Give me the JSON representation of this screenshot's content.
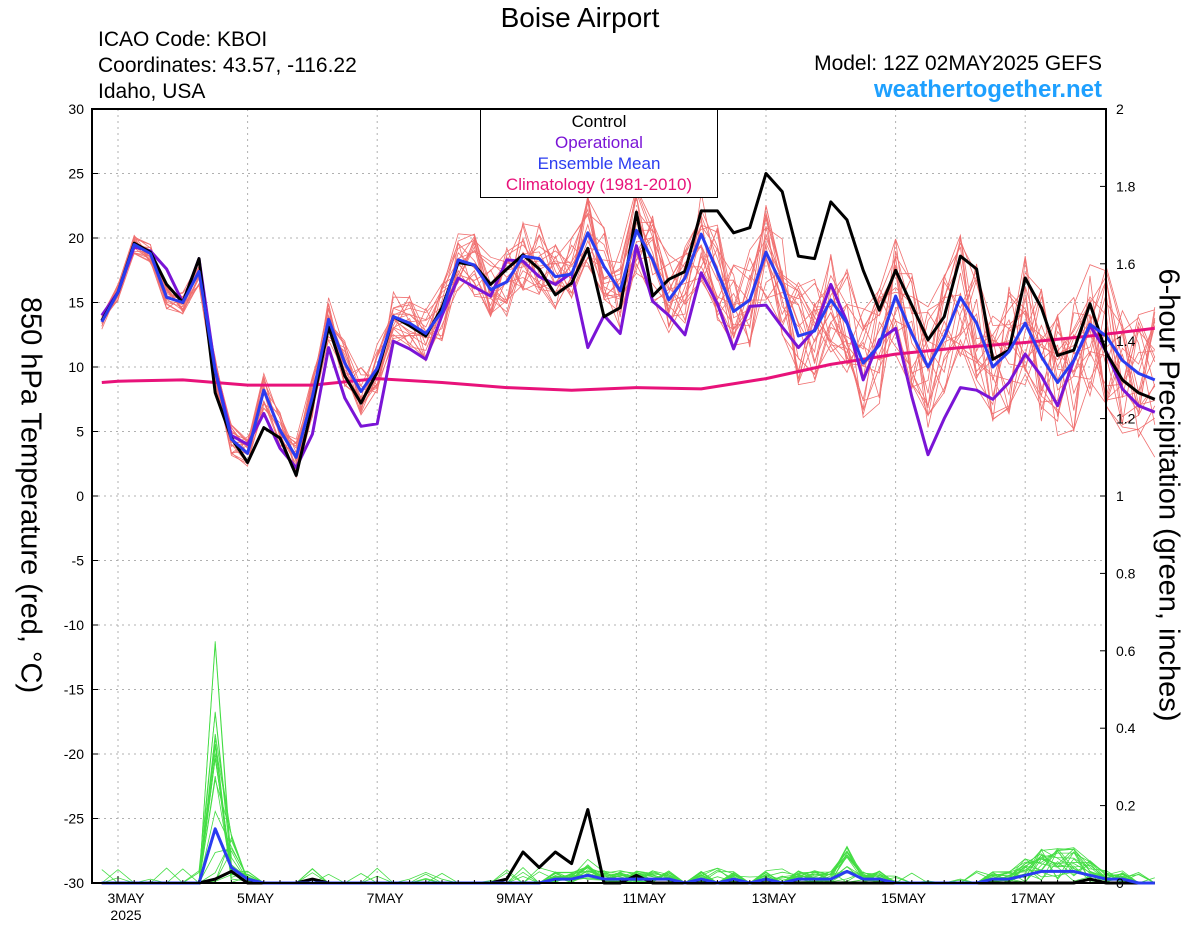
{
  "header": {
    "title": "Boise Airport",
    "icao": "ICAO Code: KBOI",
    "coordinates": "Coordinates: 43.57, -116.22",
    "region": "Idaho, USA",
    "model": "Model: 12Z 02MAY2025 GEFS",
    "site": "weathertogether.net"
  },
  "colors": {
    "members_temp": "#f07070",
    "members_precip": "#44dd44",
    "control": "#000000",
    "operational": "#7a14d6",
    "ensemble_mean": "#2a3cf0",
    "climatology": "#e8127a"
  },
  "chart_data": {
    "type": "line",
    "ylabel_left": "850 hPa Temperature (red, °C)",
    "ylabel_right": "6-hour Precipitation (green, inches)",
    "ylim_left": [
      -30,
      30
    ],
    "ylim_right": [
      0,
      2
    ],
    "xlim": [
      0,
      64
    ],
    "x_unit": "6-hour steps from 00Z 03MAY2025",
    "yticks_left": [
      30,
      25,
      20,
      15,
      10,
      5,
      0,
      -5,
      -10,
      -15,
      -20,
      -25,
      -30
    ],
    "yticks_right": [
      "2",
      "1.8",
      "1.6",
      "1.4",
      "1.2",
      "1",
      "0.8",
      "0.6",
      "0.4",
      "0.2",
      "0"
    ],
    "xticks": [
      {
        "x": 0,
        "label": "3MAY",
        "sub": "2025"
      },
      {
        "x": 8,
        "label": "5MAY"
      },
      {
        "x": 16,
        "label": "7MAY"
      },
      {
        "x": 24,
        "label": "9MAY"
      },
      {
        "x": 32,
        "label": "11MAY"
      },
      {
        "x": 40,
        "label": "13MAY"
      },
      {
        "x": 48,
        "label": "15MAY"
      },
      {
        "x": 56,
        "label": "17MAY"
      }
    ],
    "grid": true,
    "legend": {
      "position": "top-center",
      "entries": [
        "Control",
        "Operational",
        "Ensemble Mean",
        "Climatology (1981-2010)"
      ]
    },
    "series": [
      {
        "name": "Control",
        "axis": "left",
        "x": [
          -1,
          0,
          1,
          2,
          3,
          4,
          5,
          6,
          7,
          8,
          9,
          10,
          11,
          12,
          13,
          14,
          15,
          16,
          17,
          18,
          19,
          20,
          21,
          22,
          23,
          24,
          25,
          26,
          27,
          28,
          29,
          30,
          31,
          32,
          33,
          34,
          35,
          36,
          37,
          38,
          39,
          40,
          41,
          42,
          43,
          44,
          45,
          46,
          47,
          48,
          49,
          50,
          51,
          52,
          53,
          54,
          55,
          56,
          57,
          58,
          59,
          60,
          61,
          62,
          63,
          64
        ],
        "values": [
          13.6,
          15.8,
          19.6,
          18.9,
          16.4,
          15.0,
          18.4,
          8.0,
          4.5,
          2.6,
          5.3,
          4.5,
          1.6,
          7.0,
          13.1,
          9.3,
          7.2,
          9.6,
          13.9,
          13.2,
          12.4,
          14.6,
          18.1,
          17.9,
          16.4,
          17.6,
          18.7,
          17.6,
          15.6,
          16.5,
          19.2,
          13.9,
          14.6,
          22.0,
          15.5,
          16.8,
          17.4,
          22.1,
          22.1,
          20.4,
          20.8,
          25.0,
          23.6,
          18.6,
          18.4,
          22.8,
          21.4,
          17.5,
          14.4,
          17.5,
          14.8,
          12.1,
          13.9,
          18.6,
          17.6,
          10.6,
          11.3,
          16.9,
          14.6,
          10.9,
          11.3,
          14.9,
          11.1,
          9.0,
          8.0,
          7.5
        ]
      },
      {
        "name": "Operational",
        "axis": "left",
        "x": [
          -1,
          0,
          1,
          2,
          3,
          4,
          5,
          6,
          7,
          8,
          9,
          10,
          11,
          12,
          13,
          14,
          15,
          16,
          17,
          18,
          19,
          20,
          21,
          22,
          23,
          24,
          25,
          26,
          27,
          28,
          29,
          30,
          31,
          32,
          33,
          34,
          35,
          36,
          37,
          38,
          39,
          40,
          41,
          42,
          43,
          44,
          45,
          46,
          47,
          48,
          49,
          50,
          51,
          52,
          53,
          54,
          55,
          56,
          57,
          58,
          59,
          60,
          61,
          62,
          63,
          64
        ],
        "values": [
          14.0,
          15.8,
          19.3,
          19.0,
          17.6,
          15.0,
          18.4,
          9.8,
          4.7,
          4.0,
          6.4,
          3.7,
          2.2,
          4.8,
          11.5,
          7.6,
          5.4,
          5.6,
          12.0,
          11.4,
          10.6,
          14.0,
          16.9,
          16.2,
          15.5,
          18.3,
          18.2,
          17.0,
          16.4,
          17.3,
          11.5,
          14.0,
          12.6,
          19.4,
          15.1,
          14.0,
          12.5,
          17.3,
          14.9,
          11.4,
          14.7,
          14.8,
          13.1,
          11.5,
          12.9,
          16.4,
          13.5,
          9.0,
          12.1,
          13.0,
          7.7,
          3.2,
          6.0,
          8.4,
          8.2,
          7.5,
          8.8,
          11.0,
          9.3,
          7.0,
          10.5,
          13.2,
          11.2,
          8.3,
          7.0,
          6.5
        ]
      },
      {
        "name": "Ensemble Mean",
        "axis": "left",
        "x": [
          -1,
          0,
          1,
          2,
          3,
          4,
          5,
          6,
          7,
          8,
          9,
          10,
          11,
          12,
          13,
          14,
          15,
          16,
          17,
          18,
          19,
          20,
          21,
          22,
          23,
          24,
          25,
          26,
          27,
          28,
          29,
          30,
          31,
          32,
          33,
          34,
          35,
          36,
          37,
          38,
          39,
          40,
          41,
          42,
          43,
          44,
          45,
          46,
          47,
          48,
          49,
          50,
          51,
          52,
          53,
          54,
          55,
          56,
          57,
          58,
          59,
          60,
          61,
          62,
          63,
          64
        ],
        "values": [
          13.5,
          15.8,
          19.5,
          18.8,
          15.4,
          15.0,
          17.4,
          9.7,
          4.4,
          3.3,
          8.2,
          5.1,
          3.0,
          7.7,
          13.7,
          10.3,
          8.1,
          9.9,
          13.9,
          13.4,
          12.6,
          14.3,
          18.3,
          17.9,
          16.0,
          16.6,
          18.6,
          18.4,
          17.0,
          17.2,
          20.4,
          17.8,
          15.9,
          20.6,
          18.3,
          15.2,
          16.9,
          20.3,
          17.4,
          14.3,
          15.2,
          18.9,
          16.3,
          12.4,
          12.8,
          15.2,
          13.4,
          10.3,
          11.7,
          15.5,
          12.6,
          10.0,
          12.3,
          15.4,
          13.4,
          10.0,
          11.2,
          13.4,
          10.8,
          8.8,
          10.5,
          13.3,
          12.4,
          10.5,
          9.5,
          9.0
        ]
      },
      {
        "name": "Climatology (1981-2010)",
        "axis": "left",
        "x": [
          -1,
          0,
          4,
          8,
          12,
          16,
          20,
          24,
          28,
          32,
          36,
          40,
          44,
          48,
          52,
          56,
          60,
          64
        ],
        "values": [
          8.8,
          8.9,
          9.0,
          8.6,
          8.6,
          9.1,
          8.8,
          8.4,
          8.2,
          8.4,
          8.3,
          9.1,
          10.2,
          11.0,
          11.5,
          11.9,
          12.4,
          13.0
        ]
      },
      {
        "name": "Control",
        "axis": "right",
        "x": [
          -1,
          0,
          1,
          2,
          3,
          4,
          5,
          6,
          7,
          8,
          9,
          10,
          11,
          12,
          13,
          14,
          15,
          16,
          17,
          18,
          19,
          20,
          21,
          22,
          23,
          24,
          25,
          26,
          27,
          28,
          29,
          30,
          31,
          32,
          33,
          34,
          35,
          36,
          37,
          38,
          39,
          40,
          41,
          42,
          43,
          44,
          45,
          46,
          47,
          48,
          49,
          50,
          51,
          52,
          53,
          54,
          55,
          56,
          57,
          58,
          59,
          60,
          61,
          62,
          63,
          64
        ],
        "values": [
          0,
          0,
          0,
          0,
          0,
          0,
          0,
          0.01,
          0.03,
          0,
          0,
          0,
          0,
          0.01,
          0,
          0,
          0,
          0,
          0,
          0,
          0,
          0,
          0,
          0,
          0,
          0.01,
          0.08,
          0.04,
          0.08,
          0.05,
          0.19,
          0,
          0,
          0.02,
          0,
          0,
          0,
          0,
          0,
          0,
          0,
          0,
          0,
          0,
          0,
          0,
          0,
          0,
          0,
          0,
          0,
          0,
          0,
          0,
          0,
          0,
          0,
          0,
          0,
          0,
          0,
          0.01,
          0,
          0,
          0,
          0
        ]
      },
      {
        "name": "Ensemble Mean",
        "axis": "right",
        "x": [
          -1,
          0,
          1,
          2,
          3,
          4,
          5,
          6,
          7,
          8,
          9,
          10,
          11,
          12,
          13,
          14,
          15,
          16,
          17,
          18,
          19,
          20,
          21,
          22,
          23,
          24,
          25,
          26,
          27,
          28,
          29,
          30,
          31,
          32,
          33,
          34,
          35,
          36,
          37,
          38,
          39,
          40,
          41,
          42,
          43,
          44,
          45,
          46,
          47,
          48,
          49,
          50,
          51,
          52,
          53,
          54,
          55,
          56,
          57,
          58,
          59,
          60,
          61,
          62,
          63,
          64
        ],
        "values": [
          0,
          0,
          0,
          0,
          0,
          0,
          0,
          0.14,
          0.04,
          0.01,
          0,
          0,
          0,
          0,
          0,
          0,
          0,
          0,
          0,
          0,
          0,
          0,
          0,
          0,
          0,
          0,
          0,
          0,
          0.01,
          0.01,
          0.02,
          0.01,
          0.01,
          0.01,
          0.01,
          0.01,
          0,
          0.01,
          0,
          0.01,
          0,
          0.01,
          0,
          0.01,
          0.01,
          0.01,
          0.03,
          0.01,
          0.01,
          0,
          0,
          0,
          0,
          0,
          0,
          0.01,
          0.01,
          0.02,
          0.03,
          0.03,
          0.03,
          0.02,
          0.01,
          0.01,
          0,
          0
        ]
      }
    ]
  }
}
